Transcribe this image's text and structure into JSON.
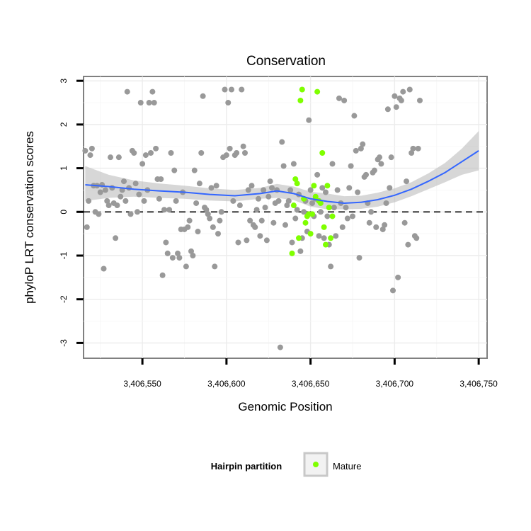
{
  "chart_data": {
    "type": "scatter",
    "title": "Conservation",
    "xlabel": "Genomic Position",
    "ylabel": "phyloP LRT conservation scores",
    "xlim": [
      3406515,
      3406755
    ],
    "ylim": [
      -3.35,
      3.1
    ],
    "x_ticks": [
      3406550,
      3406600,
      3406650,
      3406700,
      3406750
    ],
    "x_tick_labels": [
      "3,406,550",
      "3,406,600",
      "3,406,650",
      "3,406,700",
      "3,406,750"
    ],
    "y_ticks": [
      -3,
      -2,
      -1,
      0,
      1,
      2,
      3
    ],
    "y_tick_labels": [
      "-3",
      "-2",
      "-1",
      "0",
      "1",
      "2",
      "3"
    ],
    "reference_line_y": 0,
    "grid": true,
    "legend": {
      "title": "Hairpin partition",
      "placement": "bottom",
      "entries": [
        {
          "label": "Mature",
          "color": "#7fff00"
        }
      ]
    },
    "colors": {
      "other_points": "#999999",
      "mature_points": "#7fff00",
      "smooth_line": "#3366ff",
      "confidence_band": "#bdbdbd"
    },
    "series": [
      {
        "name": "",
        "color": "#999999",
        "points": [
          [
            3406516,
            1.4
          ],
          [
            3406517,
            -0.35
          ],
          [
            3406518,
            0.25
          ],
          [
            3406519,
            1.3
          ],
          [
            3406520,
            1.45
          ],
          [
            3406521,
            0.6
          ],
          [
            3406522,
            0.0
          ],
          [
            3406523,
            0.6
          ],
          [
            3406524,
            -0.05
          ],
          [
            3406525,
            0.45
          ],
          [
            3406526,
            0.62
          ],
          [
            3406527,
            -1.3
          ],
          [
            3406528,
            0.5
          ],
          [
            3406529,
            0.25
          ],
          [
            3406530,
            0.15
          ],
          [
            3406531,
            1.25
          ],
          [
            3406532,
            0.55
          ],
          [
            3406533,
            0.2
          ],
          [
            3406534,
            -0.6
          ],
          [
            3406535,
            0.15
          ],
          [
            3406536,
            1.25
          ],
          [
            3406537,
            0.35
          ],
          [
            3406538,
            0.5
          ],
          [
            3406539,
            0.7
          ],
          [
            3406540,
            0.25
          ],
          [
            3406541,
            2.75
          ],
          [
            3406542,
            0.55
          ],
          [
            3406543,
            -0.05
          ],
          [
            3406544,
            1.4
          ],
          [
            3406545,
            1.35
          ],
          [
            3406546,
            0.65
          ],
          [
            3406547,
            0.0
          ],
          [
            3406548,
            0.4
          ],
          [
            3406549,
            2.5
          ],
          [
            3406550,
            1.1
          ],
          [
            3406551,
            0.25
          ],
          [
            3406552,
            1.3
          ],
          [
            3406553,
            0.5
          ],
          [
            3406554,
            2.5
          ],
          [
            3406555,
            1.35
          ],
          [
            3406556,
            2.75
          ],
          [
            3406557,
            2.5
          ],
          [
            3406558,
            1.45
          ],
          [
            3406559,
            0.75
          ],
          [
            3406560,
            0.3
          ],
          [
            3406561,
            0.75
          ],
          [
            3406562,
            -1.45
          ],
          [
            3406563,
            0.05
          ],
          [
            3406564,
            -0.7
          ],
          [
            3406565,
            -0.95
          ],
          [
            3406566,
            0.05
          ],
          [
            3406567,
            1.35
          ],
          [
            3406568,
            -1.05
          ],
          [
            3406569,
            0.95
          ],
          [
            3406570,
            0.25
          ],
          [
            3406571,
            -0.95
          ],
          [
            3406572,
            -1.05
          ],
          [
            3406573,
            -0.4
          ],
          [
            3406574,
            0.45
          ],
          [
            3406575,
            -0.4
          ],
          [
            3406576,
            -1.25
          ],
          [
            3406577,
            -0.35
          ],
          [
            3406578,
            -0.2
          ],
          [
            3406579,
            -0.9
          ],
          [
            3406580,
            -1.0
          ],
          [
            3406581,
            0.95
          ],
          [
            3406582,
            0.2
          ],
          [
            3406583,
            -0.45
          ],
          [
            3406584,
            0.65
          ],
          [
            3406585,
            1.35
          ],
          [
            3406586,
            2.65
          ],
          [
            3406587,
            0.1
          ],
          [
            3406588,
            0.05
          ],
          [
            3406589,
            -0.05
          ],
          [
            3406590,
            -0.15
          ],
          [
            3406591,
            0.55
          ],
          [
            3406592,
            -0.35
          ],
          [
            3406593,
            -1.25
          ],
          [
            3406594,
            0.6
          ],
          [
            3406595,
            -0.5
          ],
          [
            3406596,
            -0.2
          ],
          [
            3406597,
            0.0
          ],
          [
            3406598,
            1.25
          ],
          [
            3406599,
            2.8
          ],
          [
            3406600,
            1.3
          ],
          [
            3406601,
            2.5
          ],
          [
            3406602,
            1.45
          ],
          [
            3406603,
            2.8
          ],
          [
            3406604,
            0.25
          ],
          [
            3406605,
            1.3
          ],
          [
            3406606,
            1.35
          ],
          [
            3406607,
            -0.7
          ],
          [
            3406608,
            0.15
          ],
          [
            3406609,
            2.8
          ],
          [
            3406610,
            1.5
          ],
          [
            3406611,
            1.35
          ],
          [
            3406612,
            -0.65
          ],
          [
            3406613,
            0.5
          ],
          [
            3406614,
            -0.2
          ],
          [
            3406615,
            0.6
          ],
          [
            3406616,
            -0.3
          ],
          [
            3406617,
            -0.35
          ],
          [
            3406618,
            0.05
          ],
          [
            3406619,
            0.3
          ],
          [
            3406620,
            -0.55
          ],
          [
            3406621,
            -0.2
          ],
          [
            3406622,
            0.5
          ],
          [
            3406623,
            0.1
          ],
          [
            3406624,
            -0.65
          ],
          [
            3406625,
            0.35
          ],
          [
            3406626,
            0.7
          ],
          [
            3406627,
            0.55
          ],
          [
            3406628,
            -0.25
          ],
          [
            3406629,
            0.2
          ],
          [
            3406630,
            0.5
          ],
          [
            3406631,
            0.25
          ],
          [
            3406632,
            -3.1
          ],
          [
            3406633,
            1.6
          ],
          [
            3406634,
            1.05
          ],
          [
            3406635,
            -0.3
          ],
          [
            3406636,
            0.15
          ],
          [
            3406637,
            0.25
          ],
          [
            3406638,
            0.5
          ],
          [
            3406639,
            -0.7
          ],
          [
            3406640,
            1.1
          ],
          [
            3406641,
            -0.15
          ],
          [
            3406642,
            0.05
          ],
          [
            3406643,
            0.4
          ],
          [
            3406644,
            -0.9
          ],
          [
            3406645,
            -0.6
          ],
          [
            3406646,
            0.0
          ],
          [
            3406647,
            0.25
          ],
          [
            3406648,
            -0.45
          ],
          [
            3406649,
            2.1
          ],
          [
            3406650,
            0.5
          ],
          [
            3406651,
            0.2
          ],
          [
            3406652,
            -0.1
          ],
          [
            3406653,
            0.3
          ],
          [
            3406654,
            0.85
          ],
          [
            3406655,
            -0.55
          ],
          [
            3406656,
            0.0
          ],
          [
            3406657,
            0.55
          ],
          [
            3406658,
            -0.6
          ],
          [
            3406659,
            0.45
          ],
          [
            3406660,
            -0.1
          ],
          [
            3406661,
            -0.75
          ],
          [
            3406662,
            -1.25
          ],
          [
            3406663,
            1.1
          ],
          [
            3406664,
            0.1
          ],
          [
            3406665,
            -0.55
          ],
          [
            3406666,
            0.5
          ],
          [
            3406667,
            2.6
          ],
          [
            3406668,
            0.2
          ],
          [
            3406669,
            -0.35
          ],
          [
            3406670,
            2.55
          ],
          [
            3406671,
            0.1
          ],
          [
            3406672,
            -0.15
          ],
          [
            3406673,
            0.55
          ],
          [
            3406674,
            1.05
          ],
          [
            3406675,
            -0.1
          ],
          [
            3406676,
            2.2
          ],
          [
            3406677,
            1.4
          ],
          [
            3406678,
            0.45
          ],
          [
            3406679,
            -1.05
          ],
          [
            3406680,
            1.45
          ],
          [
            3406681,
            1.55
          ],
          [
            3406682,
            0.8
          ],
          [
            3406683,
            0.85
          ],
          [
            3406684,
            0.2
          ],
          [
            3406685,
            -0.25
          ],
          [
            3406686,
            0.0
          ],
          [
            3406687,
            0.9
          ],
          [
            3406688,
            0.95
          ],
          [
            3406689,
            -0.35
          ],
          [
            3406690,
            1.2
          ],
          [
            3406691,
            1.25
          ],
          [
            3406692,
            1.1
          ],
          [
            3406693,
            -0.4
          ],
          [
            3406694,
            -0.3
          ],
          [
            3406695,
            0.2
          ],
          [
            3406696,
            2.35
          ],
          [
            3406697,
            0.55
          ],
          [
            3406698,
            1.25
          ],
          [
            3406699,
            -1.8
          ],
          [
            3406700,
            2.65
          ],
          [
            3406701,
            2.4
          ],
          [
            3406702,
            -1.5
          ],
          [
            3406703,
            2.6
          ],
          [
            3406704,
            2.55
          ],
          [
            3406705,
            2.75
          ],
          [
            3406706,
            -0.25
          ],
          [
            3406707,
            0.7
          ],
          [
            3406708,
            -0.75
          ],
          [
            3406709,
            2.8
          ],
          [
            3406710,
            1.35
          ],
          [
            3406711,
            1.45
          ],
          [
            3406712,
            -0.55
          ],
          [
            3406713,
            -0.6
          ],
          [
            3406714,
            1.45
          ],
          [
            3406715,
            2.55
          ]
        ]
      },
      {
        "name": "Mature",
        "color": "#7fff00",
        "points": [
          [
            3406639,
            -0.95
          ],
          [
            3406640,
            0.15
          ],
          [
            3406641,
            0.75
          ],
          [
            3406642,
            0.65
          ],
          [
            3406643,
            -0.6
          ],
          [
            3406644,
            2.55
          ],
          [
            3406645,
            2.8
          ],
          [
            3406646,
            0.3
          ],
          [
            3406647,
            -0.25
          ],
          [
            3406648,
            -0.1
          ],
          [
            3406649,
            -0.05
          ],
          [
            3406650,
            -0.5
          ],
          [
            3406651,
            -0.05
          ],
          [
            3406652,
            0.6
          ],
          [
            3406653,
            0.35
          ],
          [
            3406654,
            2.75
          ],
          [
            3406655,
            0.25
          ],
          [
            3406656,
            0.2
          ],
          [
            3406657,
            1.35
          ],
          [
            3406658,
            -0.35
          ],
          [
            3406659,
            -0.75
          ],
          [
            3406660,
            0.6
          ],
          [
            3406661,
            0.1
          ],
          [
            3406662,
            -0.6
          ],
          [
            3406663,
            -0.1
          ]
        ]
      }
    ],
    "smooth_fit": {
      "x": [
        3406516,
        3406530,
        3406545,
        3406560,
        3406575,
        3406590,
        3406605,
        3406620,
        3406630,
        3406640,
        3406650,
        3406660,
        3406670,
        3406680,
        3406690,
        3406700,
        3406710,
        3406720,
        3406730,
        3406740,
        3406750
      ],
      "y": [
        0.62,
        0.58,
        0.52,
        0.48,
        0.45,
        0.4,
        0.37,
        0.42,
        0.48,
        0.42,
        0.3,
        0.24,
        0.2,
        0.22,
        0.28,
        0.38,
        0.52,
        0.7,
        0.9,
        1.15,
        1.4
      ],
      "lower": [
        0.25,
        0.32,
        0.35,
        0.32,
        0.3,
        0.26,
        0.24,
        0.3,
        0.32,
        0.27,
        0.12,
        0.06,
        0.06,
        0.07,
        0.12,
        0.22,
        0.36,
        0.52,
        0.68,
        0.85,
        0.95
      ],
      "upper": [
        1.05,
        0.85,
        0.72,
        0.65,
        0.6,
        0.54,
        0.5,
        0.55,
        0.64,
        0.58,
        0.46,
        0.42,
        0.36,
        0.37,
        0.44,
        0.54,
        0.68,
        0.88,
        1.12,
        1.45,
        1.85
      ]
    }
  }
}
